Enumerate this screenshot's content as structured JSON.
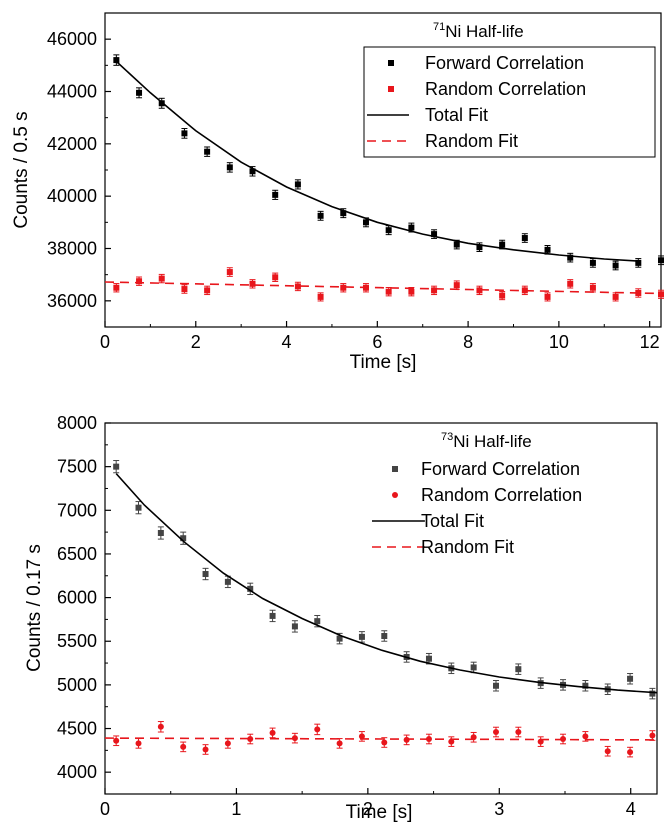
{
  "chart_data": [
    {
      "type": "scatter",
      "title": "71Ni Half-life",
      "title_base": "Ni Half-life",
      "title_sup": "71",
      "xlabel": "Time [s]",
      "ylabel": "Counts / 0.5 s",
      "xlim": [
        0,
        12.25
      ],
      "ylim": [
        35000,
        47000
      ],
      "xticks": [
        0,
        2,
        4,
        6,
        8,
        10,
        12
      ],
      "yticks": [
        36000,
        38000,
        40000,
        42000,
        44000,
        46000
      ],
      "grid": false,
      "legend_position": "top-right",
      "series": [
        {
          "name": "Forward Correlation",
          "kind": "points",
          "marker": "square",
          "color": "#000000",
          "x": [
            0.25,
            0.75,
            1.25,
            1.75,
            2.25,
            2.75,
            3.25,
            3.75,
            4.25,
            4.75,
            5.25,
            5.75,
            6.25,
            6.75,
            7.25,
            7.75,
            8.25,
            8.75,
            9.25,
            9.75,
            10.25,
            10.75,
            11.25,
            11.75,
            12.25
          ],
          "y": [
            45200,
            43950,
            43550,
            42400,
            41700,
            41100,
            40950,
            40050,
            40450,
            39250,
            39350,
            39000,
            38700,
            38800,
            38550,
            38150,
            38050,
            38150,
            38400,
            37950,
            37650,
            37450,
            37350,
            37450,
            37550
          ],
          "err": [
            200,
            190,
            190,
            185,
            180,
            180,
            180,
            175,
            175,
            170,
            170,
            170,
            170,
            170,
            165,
            165,
            165,
            165,
            165,
            165,
            165,
            165,
            165,
            165,
            165
          ]
        },
        {
          "name": "Random Correlation",
          "kind": "points",
          "marker": "square",
          "color": "#e8161c",
          "x": [
            0.25,
            0.75,
            1.25,
            1.75,
            2.25,
            2.75,
            3.25,
            3.75,
            4.25,
            4.75,
            5.25,
            5.75,
            6.25,
            6.75,
            7.25,
            7.75,
            8.25,
            8.75,
            9.25,
            9.75,
            10.25,
            10.75,
            11.25,
            11.75,
            12.25
          ],
          "y": [
            36500,
            36750,
            36850,
            36450,
            36400,
            37100,
            36650,
            36900,
            36550,
            36150,
            36500,
            36500,
            36350,
            36350,
            36400,
            36600,
            36400,
            36200,
            36400,
            36150,
            36650,
            36500,
            36150,
            36300,
            36250
          ],
          "err": [
            160,
            160,
            160,
            160,
            160,
            165,
            160,
            160,
            160,
            155,
            160,
            160,
            160,
            160,
            160,
            160,
            160,
            155,
            160,
            155,
            160,
            160,
            155,
            160,
            155
          ]
        },
        {
          "name": "Total Fit",
          "kind": "line",
          "style": "solid",
          "color": "#000000",
          "x": [
            0.25,
            1,
            2,
            3,
            4,
            5,
            6,
            7,
            8,
            9,
            10,
            11,
            11.75
          ],
          "y": [
            45150,
            43950,
            42500,
            41300,
            40350,
            39600,
            39000,
            38550,
            38200,
            37950,
            37750,
            37600,
            37520
          ]
        },
        {
          "name": "Random Fit",
          "kind": "line",
          "style": "dashed",
          "color": "#e8161c",
          "x": [
            0,
            12.25
          ],
          "y": [
            36720,
            36280
          ]
        }
      ]
    },
    {
      "type": "scatter",
      "title": "73Ni Half-life",
      "title_base": "Ni Half-life",
      "title_sup": "73",
      "xlabel": "Time [s]",
      "ylabel": "Counts / 0.17 s",
      "xlim": [
        0,
        4.2
      ],
      "ylim": [
        3750,
        8000
      ],
      "xticks": [
        0,
        1,
        2,
        3,
        4
      ],
      "yticks": [
        4000,
        4500,
        5000,
        5500,
        6000,
        6500,
        7000,
        7500,
        8000
      ],
      "grid": false,
      "legend_position": "top-right",
      "series": [
        {
          "name": "Forward Correlation",
          "kind": "points",
          "marker": "square",
          "color": "#444444",
          "x": [
            0.085,
            0.255,
            0.425,
            0.595,
            0.765,
            0.935,
            1.105,
            1.275,
            1.445,
            1.615,
            1.785,
            1.955,
            2.125,
            2.295,
            2.465,
            2.635,
            2.805,
            2.975,
            3.145,
            3.315,
            3.485,
            3.655,
            3.825,
            3.995,
            4.165
          ],
          "y": [
            7500,
            7030,
            6740,
            6680,
            6270,
            6180,
            6100,
            5790,
            5670,
            5730,
            5530,
            5550,
            5560,
            5320,
            5300,
            5190,
            5200,
            4990,
            5180,
            5020,
            5000,
            4990,
            4950,
            5070,
            4900
          ],
          "err": [
            70,
            70,
            70,
            70,
            65,
            65,
            65,
            65,
            65,
            65,
            60,
            60,
            60,
            60,
            60,
            60,
            60,
            60,
            60,
            60,
            60,
            60,
            60,
            60,
            60
          ]
        },
        {
          "name": "Random Correlation",
          "kind": "points",
          "marker": "circle",
          "color": "#e8161c",
          "x": [
            0.085,
            0.255,
            0.425,
            0.595,
            0.765,
            0.935,
            1.105,
            1.275,
            1.445,
            1.615,
            1.785,
            1.955,
            2.125,
            2.295,
            2.465,
            2.635,
            2.805,
            2.975,
            3.145,
            3.315,
            3.485,
            3.655,
            3.825,
            3.995,
            4.165
          ],
          "y": [
            4360,
            4330,
            4520,
            4290,
            4260,
            4330,
            4380,
            4450,
            4390,
            4490,
            4330,
            4410,
            4340,
            4370,
            4380,
            4350,
            4400,
            4460,
            4460,
            4350,
            4380,
            4410,
            4240,
            4230,
            4420
          ],
          "err": [
            55,
            55,
            60,
            55,
            55,
            55,
            55,
            55,
            55,
            60,
            55,
            55,
            55,
            55,
            55,
            55,
            55,
            55,
            55,
            55,
            55,
            55,
            55,
            55,
            55
          ]
        },
        {
          "name": "Total Fit",
          "kind": "line",
          "style": "solid",
          "color": "#000000",
          "x": [
            0.085,
            0.3,
            0.6,
            0.9,
            1.2,
            1.5,
            1.8,
            2.1,
            2.4,
            2.7,
            3.0,
            3.3,
            3.6,
            3.9,
            4.2
          ],
          "y": [
            7420,
            7060,
            6640,
            6280,
            5990,
            5760,
            5560,
            5400,
            5270,
            5170,
            5090,
            5030,
            4980,
            4940,
            4910
          ]
        },
        {
          "name": "Random Fit",
          "kind": "line",
          "style": "dashed",
          "color": "#e8161c",
          "x": [
            0,
            4.2
          ],
          "y": [
            4390,
            4370
          ]
        }
      ]
    }
  ]
}
